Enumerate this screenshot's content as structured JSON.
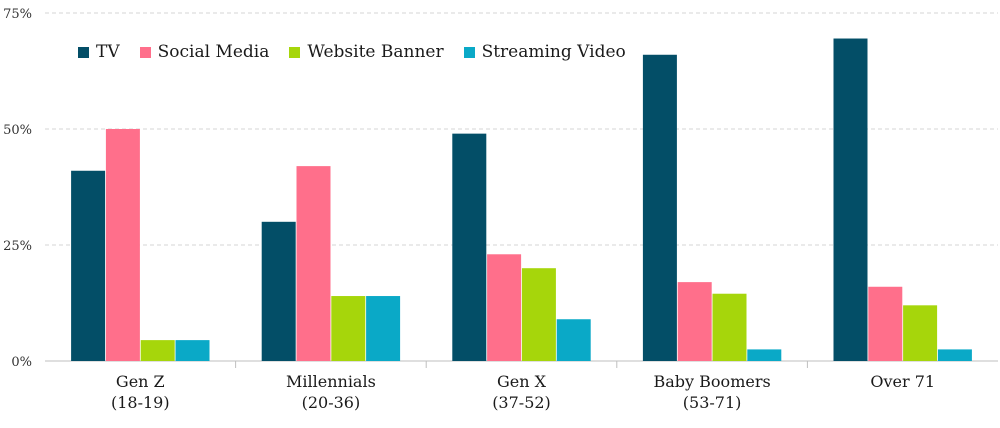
{
  "chart_data": {
    "type": "bar",
    "title": "",
    "xlabel": "",
    "ylabel": "",
    "ylim": [
      0,
      75
    ],
    "yticks": [
      0,
      25,
      50,
      75
    ],
    "ytick_labels": [
      "0%",
      "25%",
      "50%",
      "75%"
    ],
    "grid": true,
    "legend_position": "top-left",
    "categories": [
      {
        "line1": "Gen Z",
        "line2": "(18-19)"
      },
      {
        "line1": "Millennials",
        "line2": "(20-36)"
      },
      {
        "line1": "Gen X",
        "line2": "(37-52)"
      },
      {
        "line1": "Baby Boomers",
        "line2": "(53-71)"
      },
      {
        "line1": "Over 71",
        "line2": ""
      }
    ],
    "series": [
      {
        "name": "TV",
        "color": "#034e67",
        "values": [
          41,
          30,
          49,
          66,
          69.5
        ]
      },
      {
        "name": "Social Media",
        "color": "#ff6f8b",
        "values": [
          50,
          42,
          23,
          17,
          16
        ]
      },
      {
        "name": "Website Banner",
        "color": "#a6d60b",
        "values": [
          4.5,
          14,
          20,
          14.5,
          12
        ]
      },
      {
        "name": "Streaming Video",
        "color": "#0aa9c7",
        "values": [
          4.5,
          14,
          9,
          2.5,
          2.5
        ]
      }
    ]
  }
}
